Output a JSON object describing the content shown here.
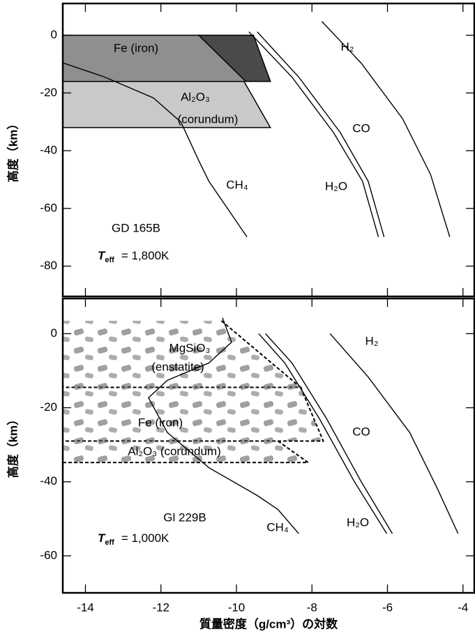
{
  "chart_data": [
    {
      "type": "line",
      "object": "GD 165B",
      "temperature": {
        "symbol": "T",
        "subscript": "eff",
        "text": "= 1,800K"
      },
      "ylabel": "高度（km）",
      "xlim": [
        -14.6,
        -3.7
      ],
      "ylim": [
        -90.5,
        11
      ],
      "yticks": [
        0,
        -20,
        -40,
        -60,
        -80
      ],
      "series": [
        {
          "name": "H₂",
          "color": "#000000",
          "x": [
            -7.74,
            -6.7,
            -5.6,
            -4.86,
            -4.35
          ],
          "y": [
            4.8,
            -9.6,
            -28.9,
            -48.2,
            -69.9
          ]
        },
        {
          "name": "CO",
          "color": "#000000",
          "x": [
            -9.45,
            -8.35,
            -7.25,
            -6.51,
            -6.09
          ],
          "y": [
            1.2,
            -14.5,
            -33.7,
            -50.6,
            -69.9
          ]
        },
        {
          "name": "H₂O",
          "color": "#000000",
          "x": [
            -9.67,
            -8.53,
            -7.43,
            -6.66,
            -6.24
          ],
          "y": [
            1.2,
            -14.5,
            -33.7,
            -50.6,
            -69.9
          ]
        },
        {
          "name": "CH₄",
          "color": "#000000",
          "x": [
            -14.59,
            -13.49,
            -12.2,
            -11.47,
            -11.0,
            -10.73,
            -9.72
          ],
          "y": [
            -9.6,
            -14.5,
            -21.7,
            -30.1,
            -43.4,
            -50.6,
            -69.9
          ]
        }
      ],
      "regions": [
        {
          "label": [
            "Fe (iron)"
          ],
          "color": "#8f8f8f",
          "style": "solid",
          "x": [
            -14.6,
            -11.0,
            -9.75,
            -14.6
          ],
          "y": [
            0,
            0,
            -16,
            -16
          ]
        },
        {
          "color": "#4a4a4a",
          "style": "solid",
          "x": [
            -11.0,
            -9.55,
            -9.1,
            -9.75
          ],
          "y": [
            0,
            0,
            -16,
            -16
          ]
        },
        {
          "label": [
            "Al₂O₃",
            "(corundum)"
          ],
          "color": "#c9c9c9",
          "style": "solid",
          "x": [
            -14.6,
            -9.8,
            -9.1,
            -14.6
          ],
          "y": [
            -16,
            -16,
            -32,
            -32
          ]
        }
      ]
    },
    {
      "type": "line",
      "object": "Gl 229B",
      "temperature": {
        "symbol": "T",
        "subscript": "eff",
        "text": "= 1,000K"
      },
      "ylabel": "高度（km）",
      "xlabel": "質量密度（g/cm³）の対数",
      "xlim": [
        -14.6,
        -3.7
      ],
      "ylim": [
        -70,
        9.5
      ],
      "xticks": [
        -14,
        -12,
        -10,
        -8,
        -6,
        -4
      ],
      "yticks": [
        0,
        -20,
        -40,
        -60
      ],
      "series": [
        {
          "name": "H₂",
          "color": "#000000",
          "x": [
            -7.52,
            -6.51,
            -5.41,
            -4.68,
            -4.13
          ],
          "y": [
            0,
            -11.7,
            -26.7,
            -41.8,
            -54
          ]
        },
        {
          "name": "CO",
          "color": "#000000",
          "x": [
            -9.23,
            -8.53,
            -7.61,
            -6.7,
            -5.87
          ],
          "y": [
            0,
            -7.9,
            -23,
            -39.9,
            -54
          ]
        },
        {
          "name": "H₂O",
          "color": "#000000",
          "x": [
            -9.41,
            -8.72,
            -7.8,
            -6.88,
            -6.02
          ],
          "y": [
            0,
            -7.9,
            -23,
            -39.9,
            -54
          ]
        },
        {
          "name": "CH₄",
          "color": "#000000",
          "x": [
            -10.37,
            -10.13,
            -10.73,
            -11.83,
            -12.33,
            -11.83,
            -10.73,
            -9.45,
            -8.9,
            -8.35
          ],
          "y": [
            4.3,
            -2.3,
            -7.9,
            -12.6,
            -17.3,
            -26.7,
            -36.2,
            -43.7,
            -47.5,
            -54
          ]
        }
      ],
      "regions": [
        {
          "label": [
            "MgSiO₃",
            "(enstatite)"
          ],
          "color": "#777777",
          "style": "dashed",
          "x": [
            -10.4,
            -8.3,
            -14.6
          ],
          "y": [
            3.5,
            -14.5,
            -14.5
          ]
        },
        {
          "label": [
            "Fe (iron)"
          ],
          "color": "#9a9a9a",
          "style": "dashed",
          "x": [
            -8.3,
            -7.7,
            -14.6
          ],
          "y": [
            -14.5,
            -29,
            -29
          ]
        },
        {
          "label": [
            "Al₂O₃ (corundum)"
          ],
          "color": "#b5b5b5",
          "style": "dashed",
          "x": [
            -8.9,
            -8.1,
            -14.6
          ],
          "y": [
            -29,
            -34.8,
            -34.8
          ]
        }
      ]
    }
  ]
}
